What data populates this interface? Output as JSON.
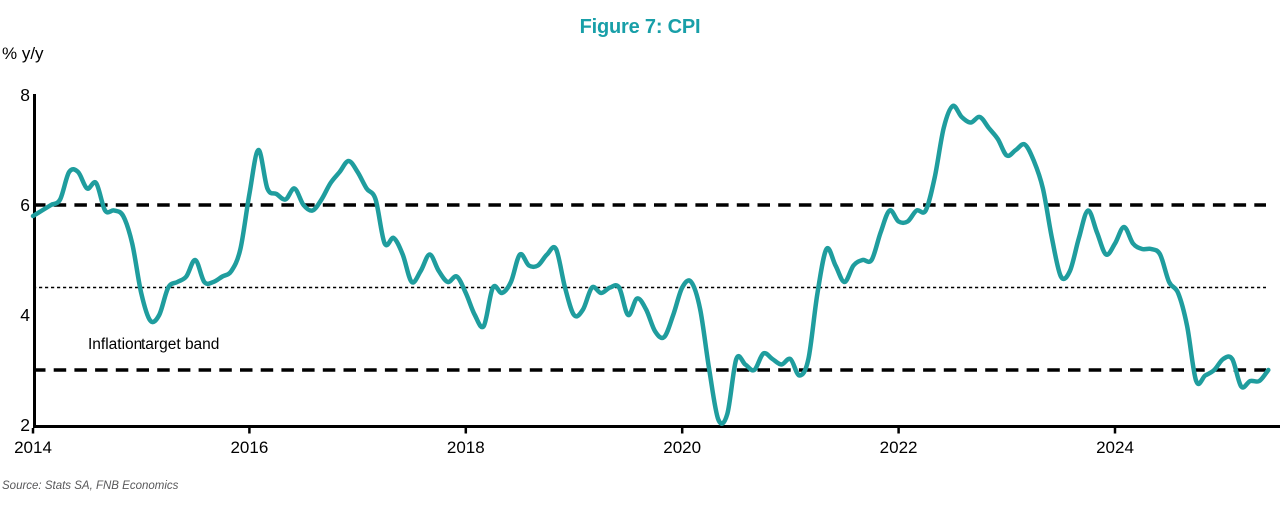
{
  "header": {
    "title": "Figure 7: CPI"
  },
  "y_axis": {
    "unit_label": "% y/y",
    "ticks": [
      8,
      6,
      4,
      2
    ]
  },
  "x_axis": {
    "ticks": [
      2014,
      2016,
      2018,
      2020,
      2022,
      2024
    ]
  },
  "annotation": {
    "layer1": "Inflation",
    "layer2": "target band"
  },
  "source": {
    "text": "Source: Stats SA, FNB Economics"
  },
  "colors": {
    "line": "#1f9d9e",
    "title": "#189fa8",
    "grid": "#000000",
    "source_text": "#58585a"
  },
  "chart_data": {
    "type": "line",
    "title": "Figure 7: CPI",
    "ylabel": "% y/y",
    "ylim": [
      2,
      8
    ],
    "y_ticks": [
      8,
      6,
      4,
      2
    ],
    "x_tick_years": [
      2014,
      2016,
      2018,
      2020,
      2022,
      2024
    ],
    "grid": "horizontal reference lines only, no frame",
    "legend": "none",
    "reference_lines": [
      {
        "level": 6.0,
        "style": "dashed",
        "meaning": "inflation target band upper bound"
      },
      {
        "level": 4.5,
        "style": "dotted",
        "meaning": "target band midpoint"
      },
      {
        "level": 3.0,
        "style": "dashed",
        "meaning": "inflation target band lower bound"
      }
    ],
    "series": [
      {
        "name": "CPI % y/y",
        "start": "2014-01",
        "frequency": "monthly",
        "values": [
          5.8,
          5.9,
          6.0,
          6.1,
          6.6,
          6.6,
          6.3,
          6.4,
          5.9,
          5.9,
          5.8,
          5.3,
          4.4,
          3.9,
          4.0,
          4.5,
          4.6,
          4.7,
          5.0,
          4.6,
          4.6,
          4.7,
          4.8,
          5.2,
          6.2,
          7.0,
          6.3,
          6.2,
          6.1,
          6.3,
          6.0,
          5.9,
          6.1,
          6.4,
          6.6,
          6.8,
          6.6,
          6.3,
          6.1,
          5.3,
          5.4,
          5.1,
          4.6,
          4.8,
          5.1,
          4.8,
          4.6,
          4.7,
          4.4,
          4.0,
          3.8,
          4.5,
          4.4,
          4.6,
          5.1,
          4.9,
          4.9,
          5.1,
          5.2,
          4.5,
          4.0,
          4.1,
          4.5,
          4.4,
          4.5,
          4.5,
          4.0,
          4.3,
          4.1,
          3.7,
          3.6,
          4.0,
          4.5,
          4.6,
          4.1,
          3.0,
          2.1,
          2.2,
          3.2,
          3.1,
          3.0,
          3.3,
          3.2,
          3.1,
          3.2,
          2.9,
          3.2,
          4.4,
          5.2,
          4.9,
          4.6,
          4.9,
          5.0,
          5.0,
          5.5,
          5.9,
          5.7,
          5.7,
          5.9,
          5.9,
          6.5,
          7.4,
          7.8,
          7.6,
          7.5,
          7.6,
          7.4,
          7.2,
          6.9,
          7.0,
          7.1,
          6.8,
          6.3,
          5.4,
          4.7,
          4.8,
          5.4,
          5.9,
          5.5,
          5.1,
          5.3,
          5.6,
          5.3,
          5.2,
          5.2,
          5.1,
          4.6,
          4.4,
          3.8,
          2.8,
          2.9,
          3.0,
          3.2,
          3.2,
          2.7,
          2.8,
          2.8,
          3.0
        ]
      }
    ]
  }
}
